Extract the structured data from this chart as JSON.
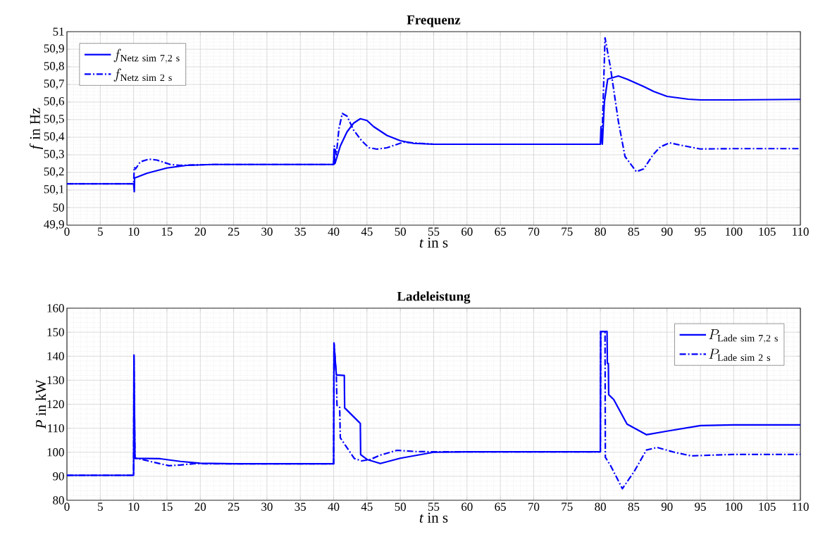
{
  "chart_data": [
    {
      "type": "line",
      "title": "Frequenz",
      "xlabel": "*t* in s",
      "ylabel": "*f* in Hz",
      "xlim": [
        0,
        110
      ],
      "ylim": [
        49.9,
        51
      ],
      "grid": true,
      "legend": "top left",
      "xticks": [
        0,
        5,
        10,
        15,
        20,
        25,
        30,
        35,
        40,
        45,
        50,
        55,
        60,
        65,
        70,
        75,
        80,
        85,
        90,
        95,
        100,
        105,
        110
      ],
      "yticks": [
        {
          "value": 49.9,
          "label": "49,9"
        },
        50,
        {
          "value": 50.1,
          "label": "50,1"
        },
        {
          "value": 50.2,
          "label": "50,2"
        },
        {
          "value": 50.3,
          "label": "50,3"
        },
        {
          "value": 50.4,
          "label": "50,4"
        },
        {
          "value": 50.5,
          "label": "50,5"
        },
        {
          "value": 50.6,
          "label": "50,6"
        },
        {
          "value": 50.7,
          "label": "50,7"
        },
        {
          "value": 50.8,
          "label": "50,8"
        },
        {
          "value": 50.9,
          "label": "50,9"
        },
        51
      ],
      "series": [
        {
          "name": "f_{\\mathrm{Netz\\ sim\\ 7{,}2\\ s}}",
          "color": "#0000ff",
          "line_style": "solid",
          "x": [
            0,
            10,
            10.1,
            10.15,
            10.3,
            12,
            15,
            18,
            22,
            40,
            40.05,
            40.2,
            41,
            42,
            43,
            44,
            45,
            46,
            48,
            50,
            52,
            55,
            80,
            80.1,
            80.3,
            80.6,
            81.1,
            82.7,
            84,
            86.5,
            88,
            90,
            93.2,
            95,
            100,
            110
          ],
          "values": [
            50.135,
            50.135,
            50.09,
            50.17,
            50.17,
            50.195,
            50.225,
            50.24,
            50.245,
            50.245,
            50.33,
            50.25,
            50.35,
            50.43,
            50.48,
            50.505,
            50.495,
            50.46,
            50.41,
            50.38,
            50.365,
            50.36,
            50.36,
            50.46,
            50.36,
            50.6,
            50.73,
            50.748,
            50.73,
            50.688,
            50.66,
            50.632,
            50.616,
            50.612,
            50.612,
            50.615
          ]
        },
        {
          "name": "f_{\\mathrm{Netz\\ sim\\ 2\\ s}}",
          "color": "#0000ff",
          "line_style": "dashdot",
          "x": [
            0,
            10,
            10.1,
            10.3,
            11,
            12.3,
            13.5,
            15.5,
            17,
            22,
            40,
            40.1,
            40.4,
            40.8,
            41.3,
            42,
            43,
            44.2,
            45.3,
            46.5,
            48,
            50.5,
            53,
            55,
            80,
            80.3,
            80.7,
            81.5,
            82.7,
            83.7,
            85.4,
            86.5,
            87.9,
            89,
            90.4,
            92,
            95,
            100,
            110
          ],
          "values": [
            50.135,
            50.135,
            50.23,
            50.22,
            50.26,
            50.275,
            50.27,
            50.245,
            50.24,
            50.245,
            50.245,
            50.35,
            50.3,
            50.45,
            50.535,
            50.52,
            50.44,
            50.38,
            50.34,
            50.332,
            50.34,
            50.372,
            50.365,
            50.36,
            50.36,
            50.45,
            50.965,
            50.8,
            50.49,
            50.29,
            50.204,
            50.22,
            50.3,
            50.345,
            50.368,
            50.355,
            50.333,
            50.335,
            50.335
          ]
        }
      ]
    },
    {
      "type": "line",
      "title": "Ladeleistung",
      "xlabel": "*t* in s",
      "ylabel": "*P* in kW",
      "xlim": [
        0,
        110
      ],
      "ylim": [
        80,
        160
      ],
      "grid": true,
      "legend": "top right",
      "xticks": [
        0,
        5,
        10,
        15,
        20,
        25,
        30,
        35,
        40,
        45,
        50,
        55,
        60,
        65,
        70,
        75,
        80,
        85,
        90,
        95,
        100,
        105,
        110
      ],
      "yticks": [
        80,
        90,
        100,
        110,
        120,
        130,
        140,
        150,
        160
      ],
      "series": [
        {
          "name": "P_{\\mathrm{Lade\\ sim\\ 7{,}2\\ s}}",
          "color": "#0000ff",
          "line_style": "solid",
          "x": [
            0,
            10,
            10.05,
            10.2,
            14,
            17,
            20,
            25,
            40,
            40.05,
            40.4,
            41.6,
            41.65,
            44,
            44.05,
            45,
            47,
            50,
            55,
            60,
            80,
            80.05,
            81,
            81.05,
            81.2,
            81.25,
            82,
            82.7,
            84,
            86.9,
            90,
            95,
            100,
            110
          ],
          "values": [
            90.4,
            90.4,
            140.5,
            97.5,
            97.3,
            96.2,
            95.4,
            95.2,
            95.2,
            145.5,
            132.2,
            132,
            118.5,
            112,
            99,
            97,
            95.3,
            97.5,
            100,
            100.2,
            100.2,
            150.3,
            150.3,
            137,
            137,
            124,
            122,
            118.4,
            111.7,
            107.3,
            108.8,
            111.1,
            111.4,
            111.4
          ]
        },
        {
          "name": "P_{\\mathrm{Lade\\ sim\\ 2\\ s}}",
          "color": "#0000ff",
          "line_style": "dashdot",
          "x": [
            0,
            10,
            10.05,
            10.2,
            11,
            12.9,
            15.3,
            17,
            19.2,
            21,
            40,
            40.05,
            40.4,
            40.5,
            40.9,
            41,
            43.1,
            44.2,
            45.5,
            47,
            49.5,
            52.3,
            55,
            80,
            80.05,
            80.7,
            80.75,
            81.6,
            83.3,
            85.1,
            86.9,
            88.5,
            91.1,
            93.6,
            100,
            110
          ],
          "values": [
            90.4,
            90.4,
            140.5,
            97.5,
            97.2,
            95.9,
            94.4,
            94.7,
            95.3,
            95.2,
            95.2,
            145.5,
            132,
            119.5,
            119,
            106,
            97.4,
            96.4,
            97,
            98.8,
            100.8,
            100.3,
            100.2,
            100.2,
            150.3,
            150.3,
            97.9,
            94.1,
            84.8,
            92.1,
            100.9,
            102,
            100,
            98.5,
            99.1,
            99.1
          ]
        }
      ]
    }
  ]
}
